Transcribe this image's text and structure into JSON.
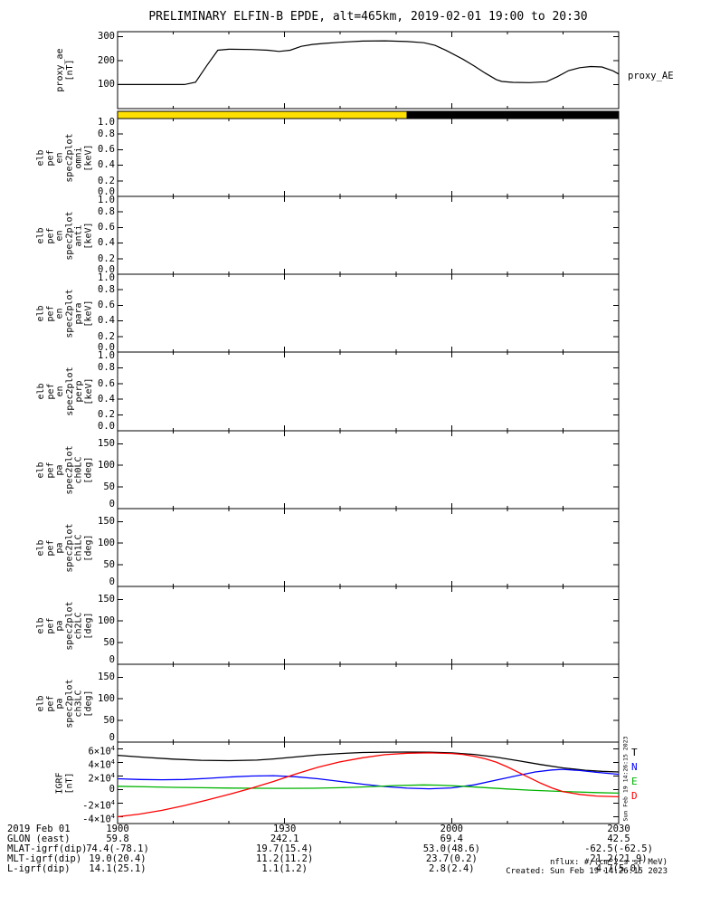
{
  "title": "PRELIMINARY ELFIN-B EPDE, alt=465km, 2019-02-01 19:00 to 20:30",
  "labels": {
    "proxy_right": "proxy_AE"
  },
  "footer": {
    "nflux": "nflux: #/(cm^2 s sr MeV)",
    "created": "Created: Sun Feb 19 14:26:15 2023",
    "side_note": "Sun Feb 19 14:26:15 2023"
  },
  "x_axis": {
    "range": [
      0,
      90
    ],
    "minor_step": 10,
    "ticks": [
      {
        "t": 0,
        "label": "1900"
      },
      {
        "t": 30,
        "label": "1930"
      },
      {
        "t": 60,
        "label": "2000"
      },
      {
        "t": 90,
        "label": "2030"
      }
    ]
  },
  "orbit_bar": {
    "segments": [
      {
        "color": "#ffe000",
        "frac": 0.577
      },
      {
        "color": "#000000",
        "frac": 0.423
      }
    ]
  },
  "ephemeris": {
    "rows": [
      {
        "label": "2019 Feb 01",
        "values": [
          "1900",
          "1930",
          "2000",
          "2030"
        ]
      },
      {
        "label": "GLON (east)",
        "values": [
          "59.8",
          "242.1",
          "69.4",
          "42.5"
        ]
      },
      {
        "label": "MLAT-igrf(dip)",
        "values": [
          "74.4(-78.1)",
          "19.7(15.4)",
          "53.0(48.6)",
          "-62.5(-62.5)"
        ]
      },
      {
        "label": "MLT-igrf(dip)",
        "values": [
          "19.0(20.4)",
          "11.2(11.2)",
          "23.7(0.2)",
          "21.2(21.9)"
        ]
      },
      {
        "label": "L-igrf(dip)",
        "values": [
          "14.1(25.1)",
          "1.1(1.2)",
          "2.8(2.4)",
          "4.7(5.0)"
        ]
      }
    ]
  },
  "chart_data": [
    {
      "id": "proxy_ae",
      "type": "line",
      "ylabel_lines": [
        "proxy_ae",
        "[nT]"
      ],
      "ylim": [
        0,
        320
      ],
      "yticks": [
        {
          "v": 100,
          "label": "100"
        },
        {
          "v": 200,
          "label": "200"
        },
        {
          "v": 300,
          "label": "300"
        }
      ],
      "series": [
        {
          "name": "proxy_AE",
          "color": "#000000",
          "points": [
            [
              0,
              100
            ],
            [
              6,
              100
            ],
            [
              12,
              100
            ],
            [
              14,
              110
            ],
            [
              16,
              178
            ],
            [
              18,
              243
            ],
            [
              20,
              247
            ],
            [
              24,
              246
            ],
            [
              27,
              243
            ],
            [
              29,
              238
            ],
            [
              31,
              243
            ],
            [
              33,
              259
            ],
            [
              35,
              267
            ],
            [
              37,
              271
            ],
            [
              40,
              276
            ],
            [
              44,
              281
            ],
            [
              48,
              282
            ],
            [
              52,
              279
            ],
            [
              55,
              274
            ],
            [
              57,
              263
            ],
            [
              59,
              242
            ],
            [
              62,
              206
            ],
            [
              64,
              178
            ],
            [
              66,
              148
            ],
            [
              68,
              121
            ],
            [
              69,
              113
            ],
            [
              71,
              109
            ],
            [
              74,
              108
            ],
            [
              77,
              112
            ],
            [
              79,
              133
            ],
            [
              81,
              158
            ],
            [
              83,
              170
            ],
            [
              85,
              175
            ],
            [
              87,
              173
            ],
            [
              89,
              157
            ],
            [
              90,
              144
            ]
          ]
        }
      ]
    },
    {
      "id": "en_omni",
      "type": "line",
      "ylabel_lines": [
        "elb",
        "pef",
        "en",
        "spec2plot",
        "omni",
        "[keV]"
      ],
      "ylim": [
        0,
        1
      ],
      "yticks": [
        {
          "v": 0,
          "label": "0.0"
        },
        {
          "v": 0.2,
          "label": "0.2"
        },
        {
          "v": 0.4,
          "label": "0.4"
        },
        {
          "v": 0.6,
          "label": "0.6"
        },
        {
          "v": 0.8,
          "label": "0.8"
        },
        {
          "v": 1,
          "label": "1.0"
        }
      ],
      "series": []
    },
    {
      "id": "en_anti",
      "type": "line",
      "ylabel_lines": [
        "elb",
        "pef",
        "en",
        "spec2plot",
        "anti",
        "[keV]"
      ],
      "ylim": [
        0,
        1
      ],
      "yticks": [
        {
          "v": 0,
          "label": "0.0"
        },
        {
          "v": 0.2,
          "label": "0.2"
        },
        {
          "v": 0.4,
          "label": "0.4"
        },
        {
          "v": 0.6,
          "label": "0.6"
        },
        {
          "v": 0.8,
          "label": "0.8"
        },
        {
          "v": 1,
          "label": "1.0"
        }
      ],
      "series": []
    },
    {
      "id": "en_para",
      "type": "line",
      "ylabel_lines": [
        "elb",
        "pef",
        "en",
        "spec2plot",
        "para",
        "[keV]"
      ],
      "ylim": [
        0,
        1
      ],
      "yticks": [
        {
          "v": 0,
          "label": "0.0"
        },
        {
          "v": 0.2,
          "label": "0.2"
        },
        {
          "v": 0.4,
          "label": "0.4"
        },
        {
          "v": 0.6,
          "label": "0.6"
        },
        {
          "v": 0.8,
          "label": "0.8"
        },
        {
          "v": 1,
          "label": "1.0"
        }
      ],
      "series": []
    },
    {
      "id": "en_perp",
      "type": "line",
      "ylabel_lines": [
        "elb",
        "pef",
        "en",
        "spec2plot",
        "perp",
        "[keV]"
      ],
      "ylim": [
        0,
        1
      ],
      "yticks": [
        {
          "v": 0,
          "label": "0.0"
        },
        {
          "v": 0.2,
          "label": "0.2"
        },
        {
          "v": 0.4,
          "label": "0.4"
        },
        {
          "v": 0.6,
          "label": "0.6"
        },
        {
          "v": 0.8,
          "label": "0.8"
        },
        {
          "v": 1,
          "label": "1.0"
        }
      ],
      "series": []
    },
    {
      "id": "pa_ch0",
      "type": "line",
      "ylabel_lines": [
        "elb",
        "pef",
        "pa",
        "spec2plot",
        "ch0LC",
        "[deg]"
      ],
      "ylim": [
        0,
        180
      ],
      "yticks": [
        {
          "v": 0,
          "label": "0"
        },
        {
          "v": 50,
          "label": "50"
        },
        {
          "v": 100,
          "label": "100"
        },
        {
          "v": 150,
          "label": "150"
        }
      ],
      "series": []
    },
    {
      "id": "pa_ch1",
      "type": "line",
      "ylabel_lines": [
        "elb",
        "pef",
        "pa",
        "spec2plot",
        "ch1LC",
        "[deg]"
      ],
      "ylim": [
        0,
        180
      ],
      "yticks": [
        {
          "v": 0,
          "label": "0"
        },
        {
          "v": 50,
          "label": "50"
        },
        {
          "v": 100,
          "label": "100"
        },
        {
          "v": 150,
          "label": "150"
        }
      ],
      "series": []
    },
    {
      "id": "pa_ch2",
      "type": "line",
      "ylabel_lines": [
        "elb",
        "pef",
        "pa",
        "spec2plot",
        "ch2LC",
        "[deg]"
      ],
      "ylim": [
        0,
        180
      ],
      "yticks": [
        {
          "v": 0,
          "label": "0"
        },
        {
          "v": 50,
          "label": "50"
        },
        {
          "v": 100,
          "label": "100"
        },
        {
          "v": 150,
          "label": "150"
        }
      ],
      "series": []
    },
    {
      "id": "pa_ch3",
      "type": "line",
      "ylabel_lines": [
        "elb",
        "pef",
        "pa",
        "spec2plot",
        "ch3LC",
        "[deg]"
      ],
      "ylim": [
        0,
        180
      ],
      "yticks": [
        {
          "v": 0,
          "label": "0"
        },
        {
          "v": 50,
          "label": "50"
        },
        {
          "v": 100,
          "label": "100"
        },
        {
          "v": 150,
          "label": "150"
        }
      ],
      "series": []
    },
    {
      "id": "igrf",
      "type": "line",
      "ylabel_lines": [
        "IGRF",
        "[nT]"
      ],
      "ylim": [
        -50000,
        70000
      ],
      "yticks": [
        {
          "v": -40000,
          "label": "-4×10^4"
        },
        {
          "v": -20000,
          "label": "-2×10^4"
        },
        {
          "v": 0,
          "label": "0"
        },
        {
          "v": 20000,
          "label": "2×10^4"
        },
        {
          "v": 40000,
          "label": "4×10^4"
        },
        {
          "v": 60000,
          "label": "6×10^4"
        }
      ],
      "legend": [
        {
          "label": "T",
          "color": "#000000"
        },
        {
          "label": "N",
          "color": "#0000ff"
        },
        {
          "label": "E",
          "color": "#00b400"
        },
        {
          "label": "D",
          "color": "#ff0000"
        }
      ],
      "series": [
        {
          "name": "T",
          "color": "#000000",
          "points": [
            [
              0,
              50500
            ],
            [
              5,
              47500
            ],
            [
              10,
              45000
            ],
            [
              15,
              43200
            ],
            [
              20,
              42600
            ],
            [
              25,
              43500
            ],
            [
              28,
              45200
            ],
            [
              32,
              48200
            ],
            [
              36,
              51200
            ],
            [
              40,
              53200
            ],
            [
              44,
              54600
            ],
            [
              48,
              55200
            ],
            [
              52,
              55400
            ],
            [
              56,
              55200
            ],
            [
              60,
              54200
            ],
            [
              64,
              51800
            ],
            [
              68,
              47800
            ],
            [
              72,
              42500
            ],
            [
              76,
              37000
            ],
            [
              80,
              32000
            ],
            [
              84,
              28500
            ],
            [
              87,
              27000
            ],
            [
              90,
              26000
            ]
          ]
        },
        {
          "name": "N",
          "color": "#0000ff",
          "points": [
            [
              0,
              16000
            ],
            [
              4,
              15000
            ],
            [
              8,
              14500
            ],
            [
              12,
              15000
            ],
            [
              16,
              16500
            ],
            [
              20,
              18500
            ],
            [
              24,
              20000
            ],
            [
              28,
              20500
            ],
            [
              32,
              19000
            ],
            [
              36,
              16000
            ],
            [
              40,
              12000
            ],
            [
              44,
              8000
            ],
            [
              48,
              4500
            ],
            [
              52,
              2200
            ],
            [
              56,
              1200
            ],
            [
              60,
              2500
            ],
            [
              64,
              7000
            ],
            [
              68,
              14000
            ],
            [
              72,
              21000
            ],
            [
              75,
              26000
            ],
            [
              78,
              29000
            ],
            [
              80,
              29800
            ],
            [
              83,
              28200
            ],
            [
              86,
              25500
            ],
            [
              90,
              22500
            ]
          ]
        },
        {
          "name": "E",
          "color": "#00b400",
          "points": [
            [
              0,
              5000
            ],
            [
              5,
              4200
            ],
            [
              10,
              3400
            ],
            [
              15,
              2800
            ],
            [
              20,
              2300
            ],
            [
              25,
              2000
            ],
            [
              30,
              1800
            ],
            [
              35,
              2000
            ],
            [
              40,
              2800
            ],
            [
              45,
              4200
            ],
            [
              50,
              6000
            ],
            [
              55,
              7000
            ],
            [
              58,
              6500
            ],
            [
              62,
              5000
            ],
            [
              66,
              3000
            ],
            [
              70,
              1000
            ],
            [
              74,
              -800
            ],
            [
              78,
              -2200
            ],
            [
              82,
              -3400
            ],
            [
              86,
              -4400
            ],
            [
              90,
              -5200
            ]
          ]
        },
        {
          "name": "D",
          "color": "#ff0000",
          "points": [
            [
              0,
              -40000
            ],
            [
              4,
              -36000
            ],
            [
              8,
              -30500
            ],
            [
              12,
              -23500
            ],
            [
              16,
              -15500
            ],
            [
              20,
              -7000
            ],
            [
              24,
              2000
            ],
            [
              28,
              12000
            ],
            [
              32,
              23000
            ],
            [
              36,
              33000
            ],
            [
              40,
              41000
            ],
            [
              44,
              47000
            ],
            [
              48,
              51500
            ],
            [
              52,
              53600
            ],
            [
              56,
              54200
            ],
            [
              60,
              53200
            ],
            [
              62,
              51800
            ],
            [
              64,
              49200
            ],
            [
              66,
              45500
            ],
            [
              68,
              40500
            ],
            [
              70,
              33500
            ],
            [
              72,
              25500
            ],
            [
              74,
              17500
            ],
            [
              76,
              9500
            ],
            [
              78,
              2500
            ],
            [
              80,
              -3000
            ],
            [
              83,
              -7000
            ],
            [
              86,
              -9500
            ],
            [
              90,
              -10500
            ]
          ]
        }
      ]
    }
  ]
}
